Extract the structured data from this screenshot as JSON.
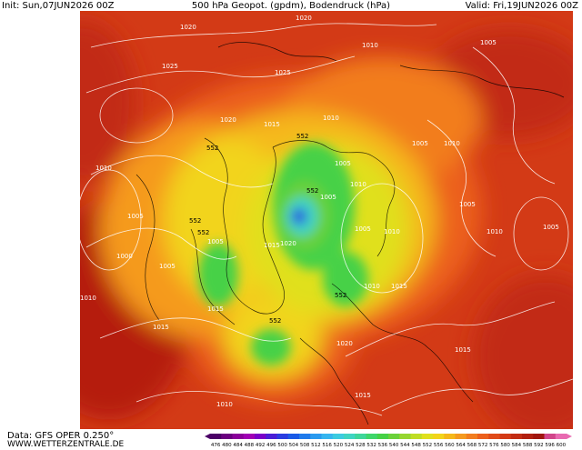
{
  "header": {
    "init": "Init: Sun,07JUN2026 00Z",
    "title": "500 hPa Geopot. (gpdm), Bodendruck (hPa)",
    "valid": "Valid: Fri,19JUN2026 00Z"
  },
  "footer": {
    "data_source": "Data: GFS OPER 0.250°",
    "website": "WWW.WETTERZENTRALE.DE"
  },
  "map": {
    "isobar_labels": [
      "1020",
      "1010",
      "1005",
      "1025",
      "1020",
      "1015",
      "1010",
      "1005",
      "1010",
      "1005",
      "1010",
      "1000",
      "1005",
      "1005",
      "1010",
      "1005",
      "1005",
      "1005",
      "1010",
      "1020",
      "1025",
      "1020",
      "1015",
      "1010",
      "1015",
      "1015",
      "1005",
      "1020",
      "1015",
      "1010",
      "1015",
      "1010",
      "1005",
      "1010",
      "1015"
    ],
    "geopotential_labels": [
      "552",
      "552",
      "552",
      "552",
      "552",
      "552",
      "552"
    ],
    "colors": {
      "background_warm": "#d93a16",
      "deep_red": "#b51f0f",
      "orange": "#f28a1f",
      "yellow": "#f2d41a",
      "green": "#2ec42e",
      "light_green": "#6ee06e",
      "cyan": "#33d1c9",
      "blue": "#2d5bd6"
    }
  },
  "colorbar": {
    "labels": [
      "476",
      "480",
      "484",
      "488",
      "492",
      "496",
      "500",
      "504",
      "508",
      "512",
      "516",
      "520",
      "524",
      "528",
      "532",
      "536",
      "540",
      "544",
      "548",
      "552",
      "556",
      "560",
      "564",
      "568",
      "572",
      "576",
      "580",
      "584",
      "588",
      "592",
      "596",
      "600"
    ],
    "colors": [
      "#4b0066",
      "#6a007f",
      "#8a009a",
      "#a000b4",
      "#7a00c8",
      "#4a1ed6",
      "#2a3ce0",
      "#1a5ae6",
      "#1f7aeb",
      "#2a9aef",
      "#36b5ef",
      "#3ccbe0",
      "#3fd4c2",
      "#3fd69a",
      "#3fd66a",
      "#46d146",
      "#6bd13a",
      "#96d630",
      "#bfdd25",
      "#e0e01e",
      "#f2d41a",
      "#f5b81a",
      "#f59a1f",
      "#f27d1f",
      "#ec601c",
      "#e04a19",
      "#d33a16",
      "#c22c13",
      "#b11f10",
      "#a0150e",
      "#d1458a",
      "#e86ab0"
    ]
  }
}
